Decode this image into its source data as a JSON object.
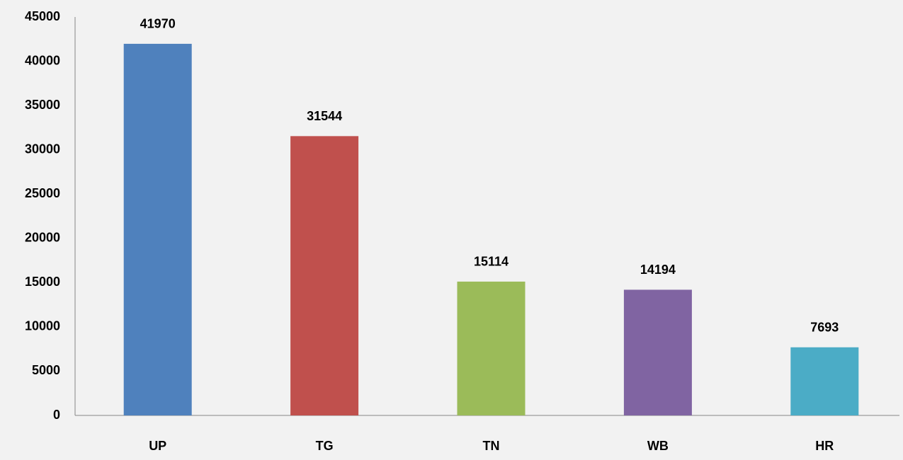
{
  "chart_data": {
    "type": "bar",
    "categories": [
      "UP",
      "TG",
      "TN",
      "WB",
      "HR"
    ],
    "values": [
      41970,
      31544,
      15114,
      14194,
      7693
    ],
    "colors": [
      "#4f81bd",
      "#c0504d",
      "#9bbb59",
      "#8064a2",
      "#4bacc6"
    ],
    "ylim": [
      0,
      45000
    ],
    "yticks": [
      0,
      5000,
      10000,
      15000,
      20000,
      25000,
      30000,
      35000,
      40000,
      45000
    ],
    "grid": false
  }
}
